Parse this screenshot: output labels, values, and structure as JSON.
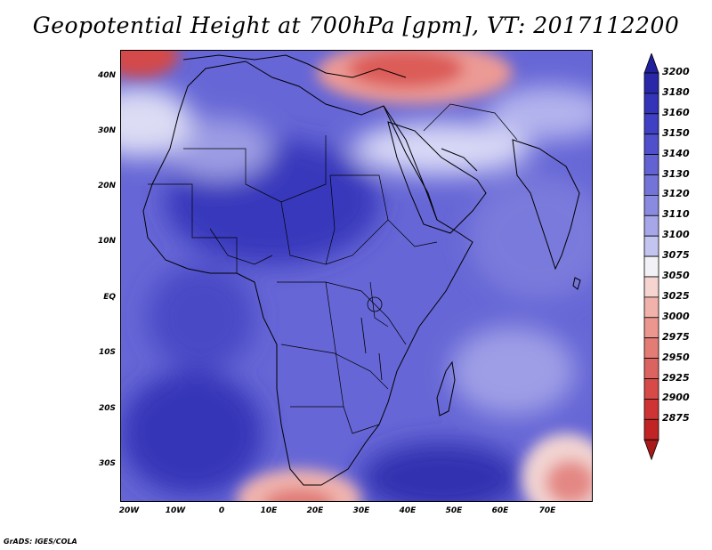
{
  "title": "Geopotential Height at 700hPa [gpm], VT: 2017112200",
  "footer": "GrADS: IGES/COLA",
  "map": {
    "lat_labels": [
      "40N",
      "30N",
      "20N",
      "10N",
      "EQ",
      "10S",
      "20S",
      "30S"
    ],
    "lon_labels": [
      "20W",
      "10W",
      "0",
      "10E",
      "20E",
      "30E",
      "40E",
      "50E",
      "60E",
      "70E"
    ]
  },
  "colorbar": {
    "levels": [
      "3200",
      "3180",
      "3160",
      "3150",
      "3140",
      "3130",
      "3120",
      "3110",
      "3100",
      "3075",
      "3050",
      "3025",
      "3000",
      "2975",
      "2950",
      "2925",
      "2900",
      "2875"
    ],
    "colors": {
      "top_arrow": "#20209a",
      "bands": [
        "#2828a8",
        "#3434b8",
        "#4040c4",
        "#5050cc",
        "#6262d2",
        "#7474d8",
        "#8a8ae0",
        "#a6a6e8",
        "#c4c4f0",
        "#f2f2f6",
        "#f6d4d0",
        "#f2b2ac",
        "#ec9690",
        "#e47c76",
        "#dc6460",
        "#d64a48",
        "#ce3434",
        "#c02424",
        "#a81a1a"
      ]
    }
  }
}
